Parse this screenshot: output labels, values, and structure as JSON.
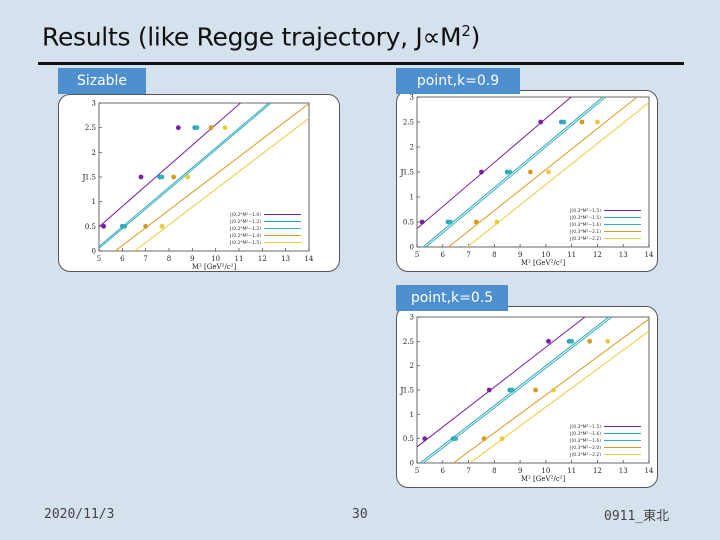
{
  "slide": {
    "title_main": "Results (like Regge  trajectory, J∝M",
    "title_sup": "2",
    "title_end": ")",
    "footer_date": "2020/11/3",
    "footer_page": "30",
    "footer_right": "0911_東北"
  },
  "labels": {
    "sizable": "Sizable",
    "point09": "point,k=0.9",
    "point05": "point,k=0.5"
  },
  "colors": {
    "purple": "#7a1fa2",
    "cyan": "#2ba3c4",
    "teal": "#35b2b2",
    "orange": "#d79a1c",
    "yellow": "#e8cc3a"
  },
  "chart_data": [
    {
      "type": "scatter",
      "panel": "sizable",
      "xlabel": "M² [GeV²/c²]",
      "ylabel": "J",
      "xlim": [
        5,
        14
      ],
      "ylim": [
        0,
        3
      ],
      "xticks": [
        "5",
        "6",
        "7",
        "8",
        "9",
        "10",
        "11",
        "12",
        "13",
        "14"
      ],
      "yticks": [
        "0",
        "0.5",
        "1",
        "1.5",
        "2",
        "2.5",
        "3"
      ],
      "legend": [
        "J(0.2*M²−1.0)",
        "J(0.2*M²−1.2)",
        "J(0.2*M²−1.2)",
        "J(0.2*M²−1.4)",
        "J(0.2*M²−1.5)"
      ],
      "series": [
        {
          "color_key": "purple",
          "slope": 0.414,
          "intercept": -1.58,
          "points": [
            [
              5.2,
              0.5
            ],
            [
              6.8,
              1.5
            ],
            [
              8.4,
              2.5
            ]
          ]
        },
        {
          "color_key": "cyan",
          "slope": 0.4,
          "intercept": -1.91,
          "points": [
            [
              6.0,
              0.5
            ],
            [
              7.6,
              1.5
            ],
            [
              9.1,
              2.5
            ]
          ]
        },
        {
          "color_key": "teal",
          "slope": 0.4,
          "intercept": -1.95,
          "points": [
            [
              6.1,
              0.5
            ],
            [
              7.7,
              1.5
            ],
            [
              9.2,
              2.5
            ]
          ]
        },
        {
          "color_key": "orange",
          "slope": 0.36,
          "intercept": -2.05,
          "points": [
            [
              7.0,
              0.5
            ],
            [
              8.2,
              1.5
            ],
            [
              9.8,
              2.5
            ]
          ]
        },
        {
          "color_key": "yellow",
          "slope": 0.36,
          "intercept": -2.35,
          "points": [
            [
              7.7,
              0.5
            ],
            [
              8.8,
              1.5
            ],
            [
              10.4,
              2.5
            ]
          ]
        }
      ]
    },
    {
      "type": "scatter",
      "panel": "point09",
      "xlabel": "M² [GeV²/c²]",
      "ylabel": "J",
      "xlim": [
        5,
        14
      ],
      "ylim": [
        0,
        3
      ],
      "xticks": [
        "5",
        "6",
        "7",
        "8",
        "9",
        "10",
        "11",
        "12",
        "13",
        "14"
      ],
      "yticks": [
        "0",
        "0.5",
        "1",
        "1.5",
        "2",
        "2.5",
        "3"
      ],
      "legend": [
        "J(0.3*M²−1.5)",
        "J(0.3*M²−1.5)",
        "J(0.3*M²−1.6)",
        "J(0.3*M²−2.1)",
        "J(0.3*M²−2.2)"
      ],
      "series": [
        {
          "color_key": "purple",
          "slope": 0.44,
          "intercept": -1.83,
          "points": [
            [
              5.2,
              0.5
            ],
            [
              7.5,
              1.5
            ],
            [
              9.8,
              2.5
            ]
          ]
        },
        {
          "color_key": "cyan",
          "slope": 0.43,
          "intercept": -2.25,
          "points": [
            [
              6.2,
              0.5
            ],
            [
              8.5,
              1.5
            ],
            [
              10.6,
              2.5
            ]
          ]
        },
        {
          "color_key": "teal",
          "slope": 0.43,
          "intercept": -2.3,
          "points": [
            [
              6.3,
              0.5
            ],
            [
              8.6,
              1.5
            ],
            [
              10.7,
              2.5
            ]
          ]
        },
        {
          "color_key": "orange",
          "slope": 0.41,
          "intercept": -2.55,
          "points": [
            [
              7.3,
              0.5
            ],
            [
              9.4,
              1.5
            ],
            [
              11.4,
              2.5
            ]
          ]
        },
        {
          "color_key": "yellow",
          "slope": 0.41,
          "intercept": -2.85,
          "points": [
            [
              8.1,
              0.5
            ],
            [
              10.1,
              1.5
            ],
            [
              12.0,
              2.5
            ]
          ]
        }
      ]
    },
    {
      "type": "scatter",
      "panel": "point05",
      "xlabel": "M² [GeV²/c²]",
      "ylabel": "J",
      "xlim": [
        5,
        14
      ],
      "ylim": [
        0,
        3
      ],
      "xticks": [
        "5",
        "6",
        "7",
        "8",
        "9",
        "10",
        "11",
        "12",
        "13",
        "14"
      ],
      "yticks": [
        "0",
        "0.5",
        "1",
        "1.5",
        "2",
        "2.5",
        "3"
      ],
      "legend": [
        "J(0.3*M²−1.5)",
        "J(0.3*M²−1.6)",
        "J(0.3*M²−1.6)",
        "J(0.3*M²−2.0)",
        "J(0.3*M²−2.2)"
      ],
      "series": [
        {
          "color_key": "purple",
          "slope": 0.41,
          "intercept": -1.72,
          "points": [
            [
              5.3,
              0.5
            ],
            [
              7.8,
              1.5
            ],
            [
              10.1,
              2.5
            ]
          ]
        },
        {
          "color_key": "cyan",
          "slope": 0.41,
          "intercept": -2.1,
          "points": [
            [
              6.4,
              0.5
            ],
            [
              8.6,
              1.5
            ],
            [
              10.9,
              2.5
            ]
          ]
        },
        {
          "color_key": "teal",
          "slope": 0.41,
          "intercept": -2.15,
          "points": [
            [
              6.5,
              0.5
            ],
            [
              8.7,
              1.5
            ],
            [
              11.0,
              2.5
            ]
          ]
        },
        {
          "color_key": "orange",
          "slope": 0.39,
          "intercept": -2.5,
          "points": [
            [
              7.6,
              0.5
            ],
            [
              9.6,
              1.5
            ],
            [
              11.7,
              2.5
            ]
          ]
        },
        {
          "color_key": "yellow",
          "slope": 0.39,
          "intercept": -2.75,
          "points": [
            [
              8.3,
              0.5
            ],
            [
              10.3,
              1.5
            ],
            [
              12.4,
              2.5
            ]
          ]
        }
      ]
    }
  ]
}
